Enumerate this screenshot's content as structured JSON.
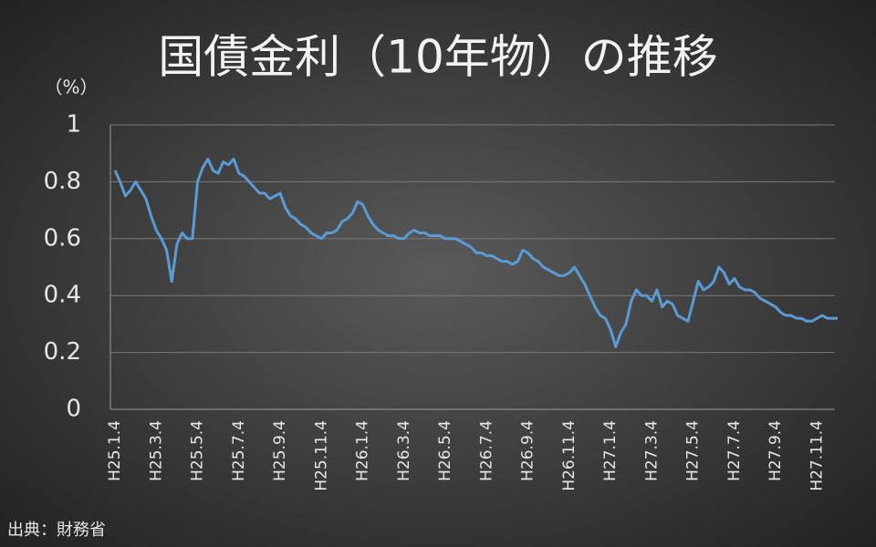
{
  "chart_data": {
    "type": "line",
    "title": "国債金利（10年物）の推移",
    "y_unit": "（%）",
    "source": "出典：財務省",
    "color": "#5b9bd5",
    "grid": true,
    "ylim": [
      0,
      1
    ],
    "yticks": [
      0,
      0.2,
      0.4,
      0.6,
      0.8,
      1
    ],
    "categories": [
      "H25.1.4",
      null,
      null,
      null,
      null,
      null,
      null,
      null,
      "H25.3.4",
      null,
      null,
      null,
      null,
      null,
      null,
      null,
      "H25.5.4",
      null,
      null,
      null,
      null,
      null,
      null,
      null,
      "H25.7.4",
      null,
      null,
      null,
      null,
      null,
      null,
      null,
      "H25.9.4",
      null,
      null,
      null,
      null,
      null,
      null,
      null,
      "H25.11.4",
      null,
      null,
      null,
      null,
      null,
      null,
      null,
      "H26.1.4",
      null,
      null,
      null,
      null,
      null,
      null,
      null,
      "H26.3.4",
      null,
      null,
      null,
      null,
      null,
      null,
      null,
      "H26.5.4",
      null,
      null,
      null,
      null,
      null,
      null,
      null,
      "H26.7.4",
      null,
      null,
      null,
      null,
      null,
      null,
      null,
      "H26.9.4",
      null,
      null,
      null,
      null,
      null,
      null,
      null,
      "H26.11.4",
      null,
      null,
      null,
      null,
      null,
      null,
      null,
      "H27.1.4",
      null,
      null,
      null,
      null,
      null,
      null,
      null,
      "H27.3.4",
      null,
      null,
      null,
      null,
      null,
      null,
      null,
      "H27.5.4",
      null,
      null,
      null,
      null,
      null,
      null,
      null,
      "H27.7.4",
      null,
      null,
      null,
      null,
      null,
      null,
      null,
      "H27.9.4",
      null,
      null,
      null,
      null,
      null,
      null,
      null,
      "H27.11.4",
      null,
      null,
      null,
      null
    ],
    "values": [
      0.84,
      0.8,
      0.75,
      0.77,
      0.8,
      0.77,
      0.74,
      0.68,
      0.63,
      0.6,
      0.56,
      0.45,
      0.58,
      0.62,
      0.6,
      0.6,
      0.8,
      0.85,
      0.88,
      0.84,
      0.83,
      0.87,
      0.86,
      0.88,
      0.83,
      0.82,
      0.8,
      0.78,
      0.76,
      0.76,
      0.74,
      0.75,
      0.76,
      0.71,
      0.68,
      0.67,
      0.65,
      0.64,
      0.62,
      0.61,
      0.6,
      0.62,
      0.62,
      0.63,
      0.66,
      0.67,
      0.69,
      0.73,
      0.72,
      0.68,
      0.65,
      0.63,
      0.62,
      0.61,
      0.61,
      0.6,
      0.6,
      0.62,
      0.63,
      0.62,
      0.62,
      0.61,
      0.61,
      0.61,
      0.6,
      0.6,
      0.6,
      0.59,
      0.58,
      0.57,
      0.55,
      0.55,
      0.54,
      0.54,
      0.53,
      0.52,
      0.52,
      0.51,
      0.52,
      0.56,
      0.55,
      0.53,
      0.52,
      0.5,
      0.49,
      0.48,
      0.47,
      0.47,
      0.48,
      0.5,
      0.47,
      0.44,
      0.4,
      0.36,
      0.33,
      0.32,
      0.28,
      0.22,
      0.27,
      0.3,
      0.38,
      0.42,
      0.4,
      0.4,
      0.38,
      0.42,
      0.36,
      0.38,
      0.37,
      0.33,
      0.32,
      0.31,
      0.38,
      0.45,
      0.42,
      0.43,
      0.45,
      0.5,
      0.48,
      0.44,
      0.46,
      0.43,
      0.42,
      0.42,
      0.41,
      0.39,
      0.38,
      0.37,
      0.36,
      0.34,
      0.33,
      0.33,
      0.32,
      0.32,
      0.31,
      0.31,
      0.32,
      0.33,
      0.32,
      0.32,
      0.32
    ]
  }
}
